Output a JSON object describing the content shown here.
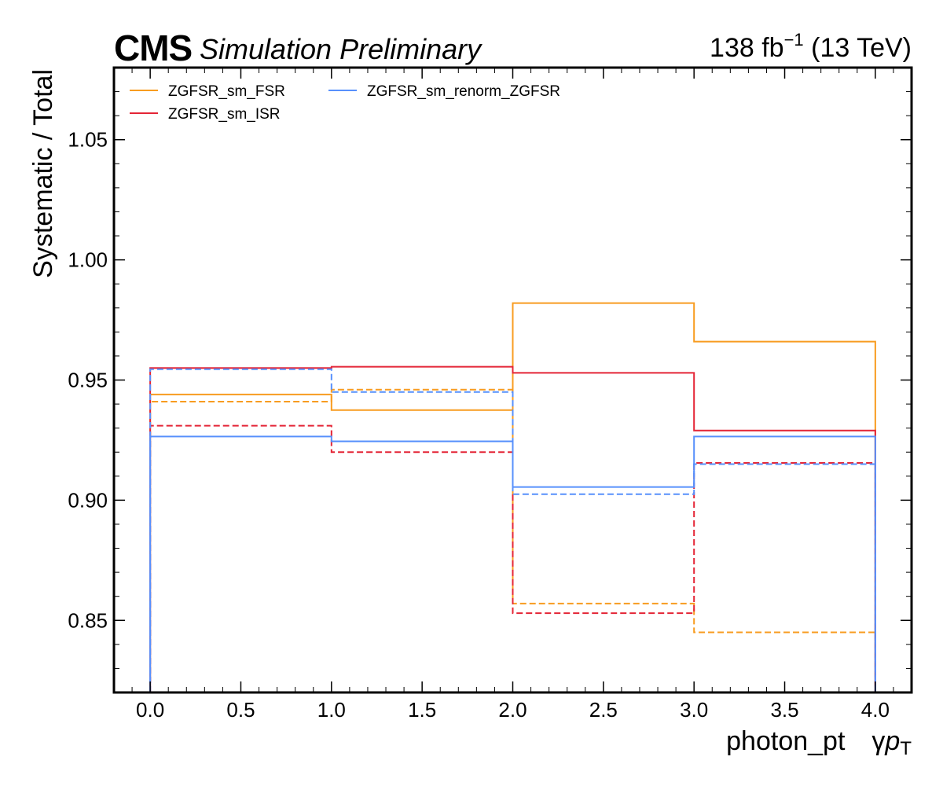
{
  "header": {
    "cms_label": "CMS",
    "cms_sublabel": "Simulation Preliminary",
    "lumi_number": "138 fb",
    "lumi_exponent": "−1",
    "lumi_energy": " (13 TeV)"
  },
  "chart_data": {
    "type": "line",
    "style": "step",
    "bin_edges": [
      0,
      1,
      2,
      3,
      4
    ],
    "xlim": [
      -0.2,
      4.2
    ],
    "ylim": [
      0.82,
      1.08
    ],
    "grid": false,
    "xlabel_main": "photon_pt",
    "xlabel_symbol": "γ",
    "xlabel_p": "p",
    "xlabel_sub": "T",
    "ylabel": "Systematic / Total",
    "x_ticks": [
      "0.0",
      "0.5",
      "1.0",
      "1.5",
      "2.0",
      "2.5",
      "3.0",
      "3.5",
      "4.0"
    ],
    "x_tick_values": [
      0,
      0.5,
      1,
      1.5,
      2,
      2.5,
      3,
      3.5,
      4
    ],
    "y_ticks": [
      "0.85",
      "0.90",
      "0.95",
      "1.00",
      "1.05"
    ],
    "y_tick_values": [
      0.85,
      0.9,
      0.95,
      1.0,
      1.05
    ],
    "legend_position": "top-left",
    "series": [
      {
        "name": "ZGFSR_sm_FSR",
        "color": "#f89c20",
        "up": [
          0.944,
          0.9375,
          0.982,
          0.966
        ],
        "down": [
          0.941,
          0.946,
          0.857,
          0.845
        ]
      },
      {
        "name": "ZGFSR_sm_ISR",
        "color": "#e42536",
        "up": [
          0.955,
          0.9555,
          0.953,
          0.929
        ],
        "down": [
          0.931,
          0.92,
          0.853,
          0.9155
        ]
      },
      {
        "name": "ZGFSR_sm_renorm_ZGFSR",
        "color": "#5790fc",
        "up": [
          0.9265,
          0.9245,
          0.9055,
          0.9265
        ],
        "down": [
          0.9545,
          0.945,
          0.9025,
          0.915
        ]
      }
    ]
  }
}
